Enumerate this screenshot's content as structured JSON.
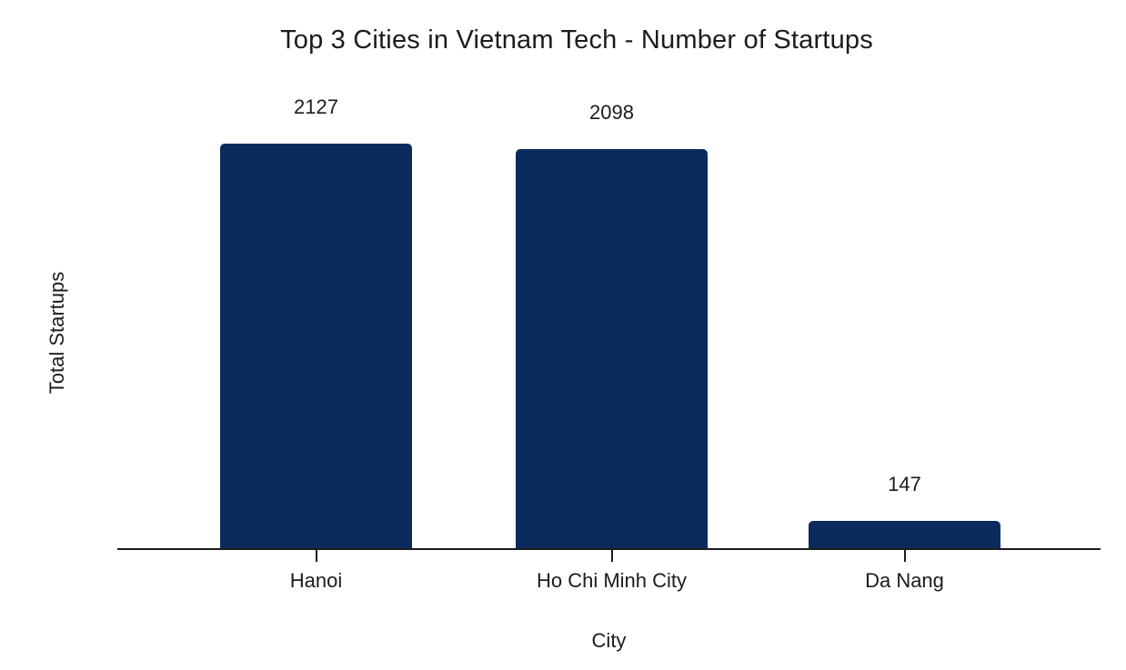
{
  "colors": {
    "bar": "#0b2b5e",
    "axis": "#1c1c1c",
    "text": "#1c1c1c",
    "background": "#ffffff"
  },
  "chart_data": {
    "type": "bar",
    "title": "Top 3 Cities in Vietnam Tech - Number of Startups",
    "categories": [
      "Hanoi",
      "Ho Chi Minh City",
      "Da Nang"
    ],
    "values": [
      2127,
      2098,
      147
    ],
    "value_labels": [
      "2127",
      "2098",
      "147"
    ],
    "xlabel": "City",
    "ylabel": "Total Startups",
    "ylim": [
      0,
      2250
    ],
    "grid": false,
    "legend_position": "none",
    "y_axis_ticks_visible": false,
    "bar_color": "#0b2b5e"
  }
}
